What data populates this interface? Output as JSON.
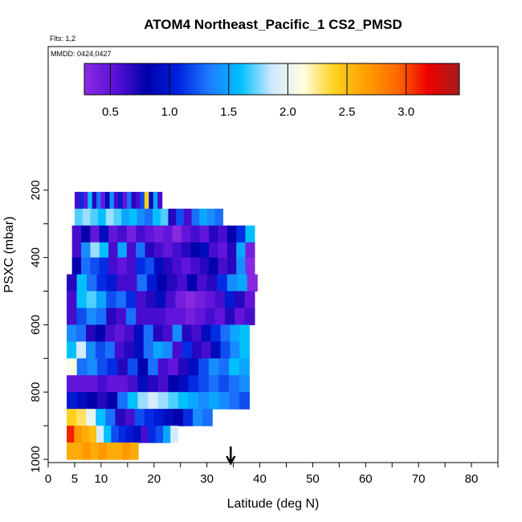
{
  "chart_data": {
    "type": "heatmap",
    "title": "ATOM4 Northeast_Pacific_1 CS2_PMSD",
    "annotations": [
      "Flts: 1,2",
      "MMDD: 0424,0427"
    ],
    "xlabel": "Latitude (deg N)",
    "ylabel": "PSXC (mbar)",
    "xlim": [
      0,
      85
    ],
    "ylim": [
      1000,
      150
    ],
    "x_ticks": [
      0,
      5,
      10,
      20,
      30,
      40,
      50,
      60,
      70,
      80
    ],
    "y_ticks": [
      200,
      400,
      600,
      800,
      1000
    ],
    "colorbar": {
      "range": [
        0.28,
        3.45
      ],
      "ticks": [
        "0.5",
        "1.0",
        "1.5",
        "2.0",
        "2.5",
        "3.0"
      ],
      "colors": [
        "#8a2be2",
        "#5a10d8",
        "#0000aa",
        "#0022e0",
        "#1e7bff",
        "#00c0ff",
        "#cfe8ff",
        "#ffffe0",
        "#ffd21e",
        "#ffa000",
        "#ff6a00",
        "#ee0000",
        "#a51c1c"
      ]
    },
    "marker": {
      "latitude": 34.5,
      "symbol": "arrow"
    },
    "rows": [
      {
        "p0": 205,
        "p1": 255,
        "lat0": 5,
        "lat1": 21.5,
        "values": [
          0.6,
          1.1,
          0.5,
          1.6,
          0.7,
          1.3,
          0.5,
          0.9,
          1.4,
          0.6,
          1.0,
          0.5,
          1.3,
          0.7,
          0.6,
          1.2,
          2.4,
          0.9,
          1.5,
          0.6
        ]
      },
      {
        "p0": 255,
        "p1": 305,
        "lat0": 5,
        "lat1": 33,
        "values": [
          1.7,
          1.8,
          1.7,
          1.6,
          1.8,
          1.7,
          1.5,
          1.6,
          1.4,
          1.3,
          1.6,
          1.7,
          0.7,
          1.2,
          0.6,
          1.3,
          1.5,
          1.4,
          1.3
        ]
      },
      {
        "p0": 305,
        "p1": 355,
        "lat0": 4.5,
        "lat1": 39,
        "values": [
          0.6,
          0.8,
          0.5,
          0.9,
          0.5,
          0.6,
          0.4,
          0.6,
          0.5,
          0.4,
          0.5,
          0.3,
          0.5,
          0.6,
          0.5,
          0.7,
          0.6,
          0.8,
          1.1,
          1.6
        ]
      },
      {
        "p0": 355,
        "p1": 400,
        "lat0": 4.5,
        "lat1": 39,
        "values": [
          0.6,
          1.4,
          1.8,
          1.6,
          0.6,
          1.5,
          0.6,
          1.3,
          0.7,
          0.6,
          0.5,
          0.6,
          0.7,
          0.8,
          0.9,
          0.6,
          0.5,
          0.7,
          1.5,
          0.4
        ]
      },
      {
        "p0": 400,
        "p1": 450,
        "lat0": 4.5,
        "lat1": 39,
        "values": [
          0.8,
          1.3,
          1.2,
          1.1,
          0.6,
          0.5,
          0.6,
          1.1,
          1.2,
          0.9,
          0.7,
          0.6,
          0.5,
          0.6,
          0.7,
          0.8,
          0.6,
          0.7,
          1.4,
          0.3
        ]
      },
      {
        "p0": 450,
        "p1": 500,
        "lat0": 3.5,
        "lat1": 39.5,
        "values": [
          0.7,
          1.6,
          1.3,
          1.1,
          1.0,
          0.6,
          0.6,
          1.3,
          1.0,
          0.8,
          0.7,
          0.6,
          0.8,
          0.6,
          0.7,
          1.1,
          1.4,
          1.5,
          0.3
        ]
      },
      {
        "p0": 500,
        "p1": 550,
        "lat0": 3.5,
        "lat1": 39,
        "values": [
          0.6,
          1.6,
          1.7,
          1.5,
          1.2,
          1.3,
          1.1,
          0.6,
          0.7,
          0.9,
          0.6,
          0.4,
          0.3,
          0.4,
          0.5,
          0.6,
          1.0,
          0.7,
          0.5
        ]
      },
      {
        "p0": 550,
        "p1": 600,
        "lat0": 3.5,
        "lat1": 39,
        "values": [
          0.6,
          1.2,
          1.4,
          1.3,
          0.7,
          0.6,
          1.3,
          0.6,
          0.6,
          0.6,
          0.5,
          0.5,
          0.4,
          0.5,
          0.6,
          0.5,
          0.7,
          0.5,
          0.6
        ]
      },
      {
        "p0": 600,
        "p1": 650,
        "lat0": 3.5,
        "lat1": 38,
        "values": [
          1.4,
          1.3,
          0.7,
          0.8,
          0.6,
          0.5,
          0.6,
          0.9,
          1.3,
          0.7,
          0.6,
          1.4,
          0.7,
          0.6,
          0.9,
          1.1,
          1.3,
          1.5,
          1.6
        ]
      },
      {
        "p0": 650,
        "p1": 700,
        "lat0": 3.5,
        "lat1": 38,
        "values": [
          1.6,
          1.9,
          1.4,
          1.2,
          1.3,
          0.6,
          0.7,
          0.9,
          1.3,
          1.5,
          1.4,
          0.6,
          1.1,
          0.7,
          0.6,
          0.9,
          1.2,
          1.4,
          1.6
        ]
      },
      {
        "p0": 700,
        "p1": 750,
        "lat0": 3.5,
        "lat1": 38,
        "values": [
          2.1,
          1.3,
          1.4,
          1.2,
          1.1,
          0.7,
          1.2,
          0.8,
          1.3,
          0.6,
          0.5,
          0.7,
          0.9,
          1.2,
          1.4,
          1.3,
          1.6,
          1.5
        ]
      },
      {
        "p0": 750,
        "p1": 800,
        "lat0": 3.5,
        "lat1": 38,
        "values": [
          0.5,
          0.5,
          0.5,
          0.6,
          0.5,
          0.5,
          0.6,
          0.9,
          0.7,
          0.6,
          0.8,
          0.9,
          1.1,
          1.2,
          1.3,
          1.2,
          1.3,
          1.4
        ]
      },
      {
        "p0": 800,
        "p1": 850,
        "lat0": 3.5,
        "lat1": 38,
        "values": [
          1.0,
          0.9,
          0.8,
          0.7,
          0.8,
          1.3,
          1.6,
          1.8,
          1.9,
          1.8,
          1.7,
          1.6,
          1.5,
          1.4,
          1.5,
          1.4,
          1.3,
          1.2
        ]
      },
      {
        "p0": 850,
        "p1": 900,
        "lat0": 3.5,
        "lat1": 31,
        "values": [
          2.4,
          2.3,
          2.0,
          1.6,
          1.3,
          0.7,
          0.6,
          1.2,
          1.1,
          1.0,
          0.9,
          0.8,
          1.1,
          1.4,
          1.3
        ]
      },
      {
        "p0": 900,
        "p1": 950,
        "lat0": 3.5,
        "lat1": 24.5,
        "values": [
          3.1,
          2.7,
          2.6,
          2.5,
          1.9,
          1.6,
          1.2,
          1.1,
          1.0,
          0.9,
          0.6,
          1.1,
          1.2,
          1.5,
          1.9
        ]
      },
      {
        "p0": 950,
        "p1": 1000,
        "lat0": 3.5,
        "lat1": 17,
        "values": [
          2.6,
          2.6,
          2.7,
          2.6,
          2.7,
          2.6,
          2.6,
          2.7,
          2.6
        ]
      }
    ]
  }
}
